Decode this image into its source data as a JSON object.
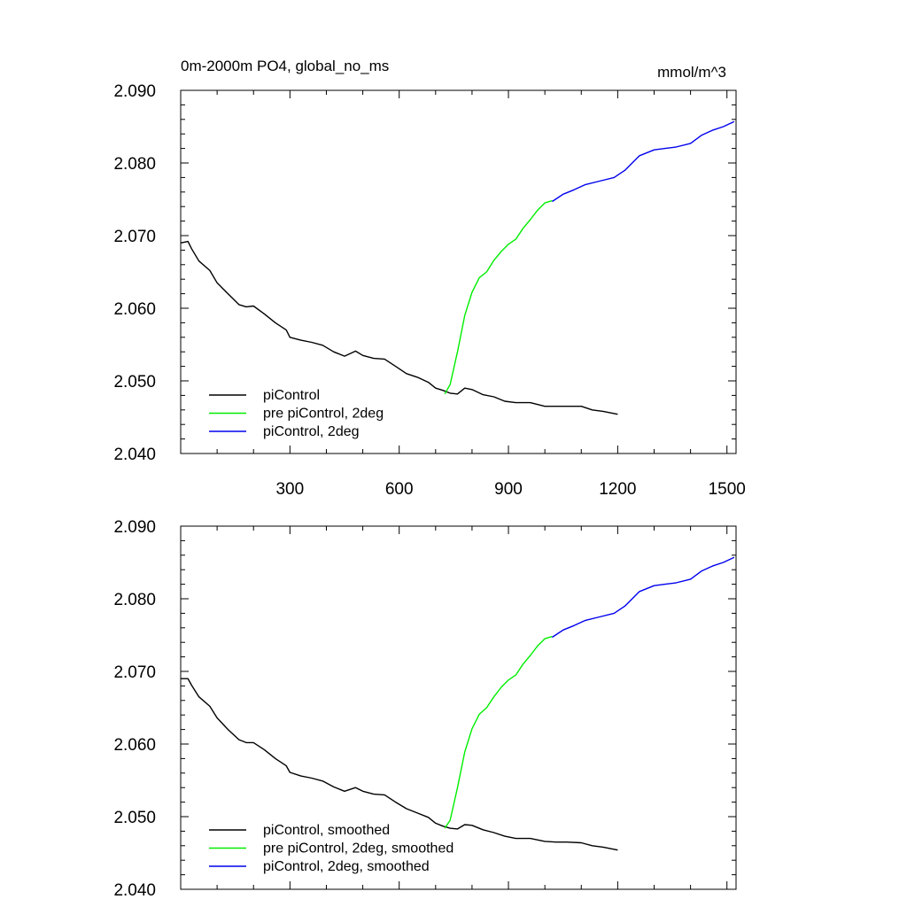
{
  "chart_data": [
    {
      "type": "line",
      "title": "0m-2000m PO4, global_no_ms",
      "units": "mmol/m^3",
      "xlim": [
        0,
        1525
      ],
      "ylim": [
        2.04,
        2.09
      ],
      "yticks": [
        2.04,
        2.05,
        2.06,
        2.07,
        2.08,
        2.09
      ],
      "ytick_labels": [
        "2.040",
        "2.050",
        "2.060",
        "2.070",
        "2.080",
        "2.090"
      ],
      "xticks": [
        300,
        600,
        900,
        1200,
        1500
      ],
      "xtick_labels": [
        "300",
        "600",
        "900",
        "1200",
        "1500"
      ],
      "legend_position": "bottom-left",
      "series": [
        {
          "name": "piControl",
          "color": "#000000",
          "x": [
            1,
            20,
            30,
            50,
            80,
            100,
            130,
            160,
            180,
            200,
            230,
            260,
            290,
            300,
            330,
            360,
            390,
            420,
            450,
            480,
            500,
            530,
            560,
            590,
            620,
            650,
            680,
            700,
            720,
            740,
            760,
            780,
            800,
            830,
            860,
            890,
            920,
            960,
            1000,
            1030,
            1060,
            1100,
            1130,
            1160,
            1200
          ],
          "y": [
            2.069,
            2.0692,
            2.0682,
            2.0665,
            2.0652,
            2.0635,
            2.062,
            2.0605,
            2.0602,
            2.0603,
            2.0592,
            2.058,
            2.057,
            2.056,
            2.0556,
            2.0553,
            2.0549,
            2.054,
            2.0534,
            2.0541,
            2.0535,
            2.0531,
            2.053,
            2.052,
            2.051,
            2.0505,
            2.0498,
            2.049,
            2.0487,
            2.0483,
            2.0482,
            2.049,
            2.0488,
            2.0481,
            2.0478,
            2.0472,
            2.047,
            2.047,
            2.0465,
            2.0465,
            2.0465,
            2.0465,
            2.046,
            2.0458,
            2.0454
          ]
        },
        {
          "name": "pre piControl, 2deg",
          "color": "#00ee00",
          "x": [
            725,
            740,
            760,
            780,
            800,
            820,
            840,
            860,
            880,
            900,
            920,
            940,
            960,
            980,
            1000,
            1020
          ],
          "y": [
            2.0482,
            2.0495,
            2.054,
            2.059,
            2.0622,
            2.0642,
            2.065,
            2.0666,
            2.0678,
            2.0688,
            2.0695,
            2.071,
            2.0722,
            2.0735,
            2.0745,
            2.0748
          ]
        },
        {
          "name": "piControl, 2deg",
          "color": "#0000ee",
          "x": [
            1020,
            1050,
            1080,
            1110,
            1150,
            1190,
            1220,
            1260,
            1300,
            1330,
            1360,
            1400,
            1430,
            1460,
            1490,
            1520
          ],
          "y": [
            2.0747,
            2.0757,
            2.0763,
            2.077,
            2.0775,
            2.078,
            2.079,
            2.081,
            2.0818,
            2.082,
            2.0822,
            2.0827,
            2.0838,
            2.0845,
            2.085,
            2.0857
          ]
        }
      ]
    },
    {
      "type": "line",
      "title": "",
      "units": "",
      "xlim": [
        0,
        1525
      ],
      "ylim": [
        2.04,
        2.09
      ],
      "yticks": [
        2.04,
        2.05,
        2.06,
        2.07,
        2.08,
        2.09
      ],
      "ytick_labels": [
        "2.040",
        "2.050",
        "2.060",
        "2.070",
        "2.080",
        "2.090"
      ],
      "xticks": [
        300,
        600,
        900,
        1200,
        1500
      ],
      "xtick_labels": [],
      "legend_position": "bottom-left",
      "series": [
        {
          "name": "piControl, smoothed",
          "color": "#000000",
          "x": [
            1,
            20,
            30,
            50,
            80,
            100,
            130,
            160,
            180,
            200,
            230,
            260,
            290,
            300,
            330,
            360,
            390,
            420,
            450,
            480,
            500,
            530,
            560,
            590,
            620,
            650,
            680,
            700,
            720,
            740,
            760,
            780,
            800,
            830,
            860,
            890,
            920,
            960,
            1000,
            1030,
            1060,
            1100,
            1130,
            1160,
            1200
          ],
          "y": [
            2.069,
            2.069,
            2.0681,
            2.0665,
            2.0652,
            2.0636,
            2.062,
            2.0606,
            2.0602,
            2.0602,
            2.0592,
            2.058,
            2.057,
            2.0561,
            2.0556,
            2.0553,
            2.0549,
            2.0541,
            2.0535,
            2.054,
            2.0535,
            2.0531,
            2.053,
            2.052,
            2.0511,
            2.0505,
            2.0499,
            2.0491,
            2.0487,
            2.0484,
            2.0483,
            2.0489,
            2.0488,
            2.0482,
            2.0478,
            2.0473,
            2.047,
            2.047,
            2.0466,
            2.0465,
            2.0465,
            2.0464,
            2.046,
            2.0458,
            2.0454
          ]
        },
        {
          "name": "pre piControl, 2deg, smoothed",
          "color": "#00ee00",
          "x": [
            725,
            740,
            760,
            780,
            800,
            820,
            840,
            860,
            880,
            900,
            920,
            940,
            960,
            980,
            1000,
            1020
          ],
          "y": [
            2.0484,
            2.0495,
            2.054,
            2.0589,
            2.0621,
            2.0641,
            2.065,
            2.0665,
            2.0678,
            2.0688,
            2.0695,
            2.071,
            2.0722,
            2.0735,
            2.0745,
            2.0748
          ]
        },
        {
          "name": "piControl, 2deg, smoothed",
          "color": "#0000ee",
          "x": [
            1020,
            1050,
            1080,
            1110,
            1150,
            1190,
            1220,
            1260,
            1300,
            1330,
            1360,
            1400,
            1430,
            1460,
            1490,
            1520
          ],
          "y": [
            2.0747,
            2.0757,
            2.0763,
            2.077,
            2.0775,
            2.078,
            2.079,
            2.081,
            2.0818,
            2.082,
            2.0822,
            2.0827,
            2.0838,
            2.0845,
            2.085,
            2.0857
          ]
        }
      ]
    }
  ]
}
